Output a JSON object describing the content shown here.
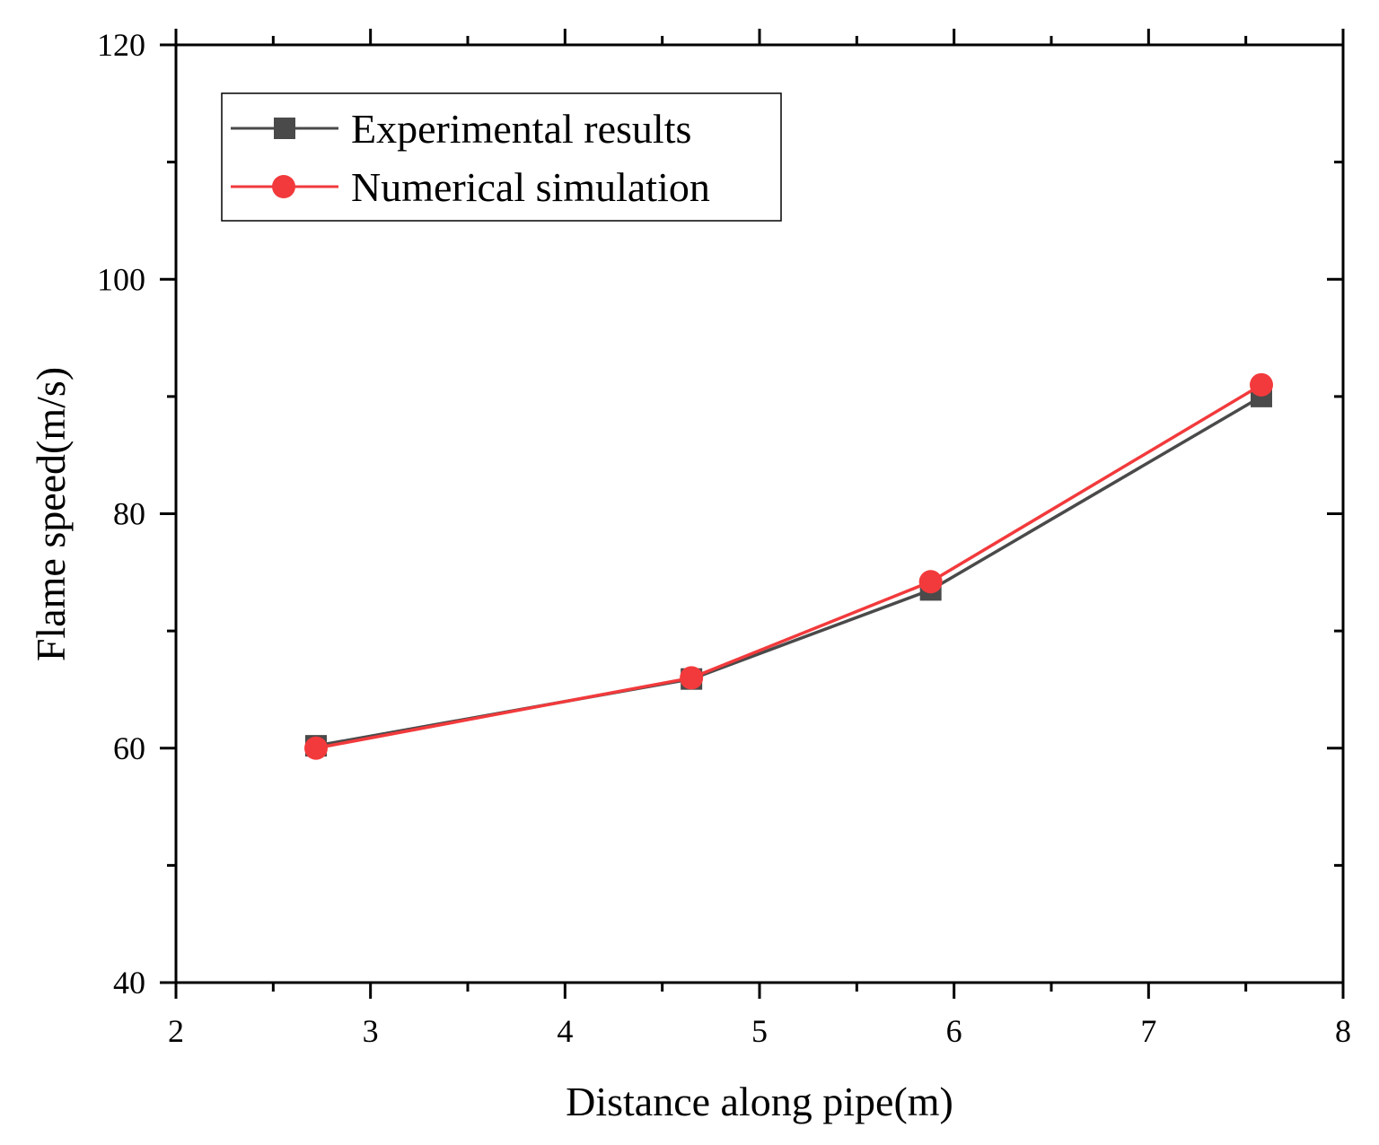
{
  "chart_data": {
    "type": "line",
    "xlabel": "Distance along pipe(m)",
    "ylabel": "Flame speed(m/s)",
    "xlim": [
      2,
      8
    ],
    "ylim": [
      40,
      120
    ],
    "x_ticks": [
      2,
      3,
      4,
      5,
      6,
      7,
      8
    ],
    "y_ticks": [
      40,
      60,
      80,
      100,
      120
    ],
    "x_tick_labels": [
      "2",
      "3",
      "4",
      "5",
      "6",
      "7",
      "8"
    ],
    "y_tick_labels": [
      "40",
      "60",
      "80",
      "100",
      "120"
    ],
    "grid": false,
    "legend_position": "top-left",
    "series": [
      {
        "name": "Experimental results",
        "color": "#4a4a4a",
        "marker": "square",
        "x": [
          2.72,
          4.65,
          5.88,
          7.58
        ],
        "y": [
          60.2,
          65.9,
          73.5,
          90.0
        ]
      },
      {
        "name": "Numerical simulation",
        "color": "#f23a3c",
        "marker": "circle",
        "x": [
          2.72,
          4.65,
          5.88,
          7.58
        ],
        "y": [
          60.0,
          66.0,
          74.2,
          91.0
        ]
      }
    ]
  }
}
